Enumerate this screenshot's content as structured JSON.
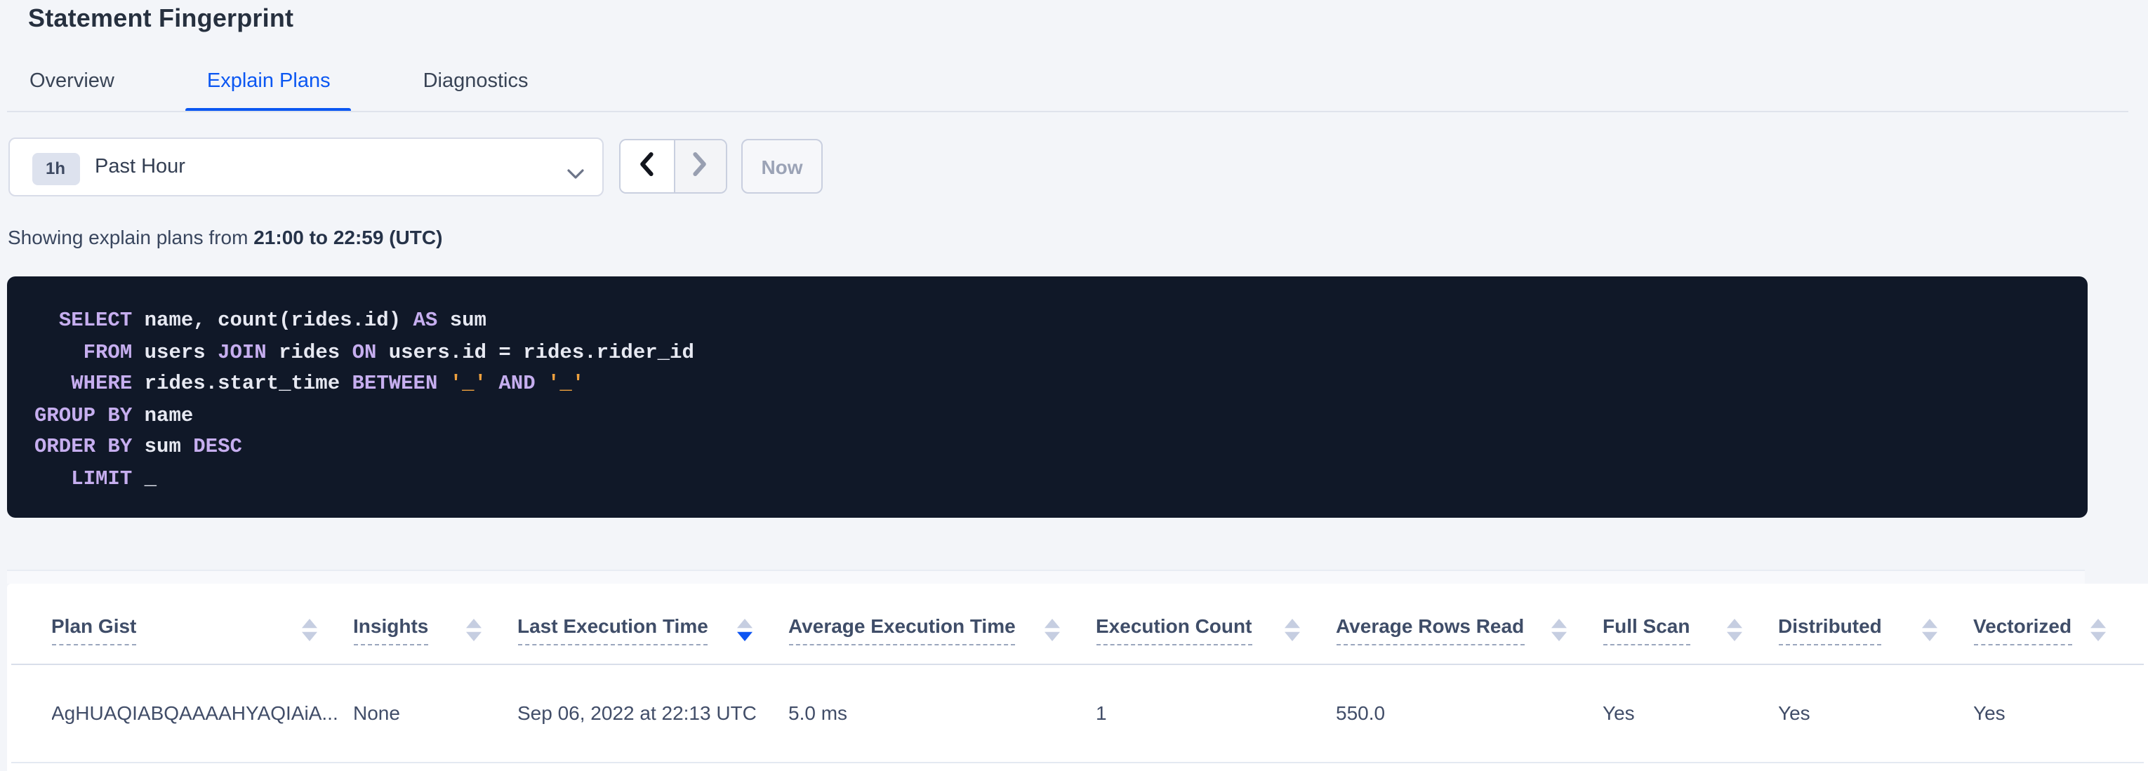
{
  "page": {
    "title": "Statement Fingerprint"
  },
  "tabs": [
    {
      "label": "Overview",
      "active": false
    },
    {
      "label": "Explain Plans",
      "active": true
    },
    {
      "label": "Diagnostics",
      "active": false
    }
  ],
  "time_picker": {
    "range_badge": "1h",
    "range_label": "Past Hour",
    "now_label": "Now",
    "prev_enabled": true,
    "next_enabled": false,
    "now_enabled": false,
    "icons": {
      "select_caret": "chevron-down",
      "prev": "chevron-left",
      "next": "chevron-right"
    }
  },
  "status_line": {
    "prefix": "Showing explain plans from ",
    "range_bold": "21:00 to 22:59 (UTC)"
  },
  "sql": {
    "lines": [
      [
        [
          "sp",
          "  "
        ],
        [
          "kw",
          "SELECT"
        ],
        [
          "id",
          " name, count(rides.id) "
        ],
        [
          "kw",
          "AS"
        ],
        [
          "id",
          " sum"
        ]
      ],
      [
        [
          "sp",
          "    "
        ],
        [
          "kw",
          "FROM"
        ],
        [
          "id",
          " users "
        ],
        [
          "kw",
          "JOIN"
        ],
        [
          "id",
          " rides "
        ],
        [
          "kw",
          "ON"
        ],
        [
          "id",
          " users.id = rides.rider_id"
        ]
      ],
      [
        [
          "sp",
          "   "
        ],
        [
          "kw",
          "WHERE"
        ],
        [
          "id",
          " rides.start_time "
        ],
        [
          "kw",
          "BETWEEN"
        ],
        [
          "id",
          " "
        ],
        [
          "lit",
          "'_'"
        ],
        [
          "id",
          " "
        ],
        [
          "kw",
          "AND"
        ],
        [
          "id",
          " "
        ],
        [
          "lit",
          "'_'"
        ]
      ],
      [
        [
          "kw",
          "GROUP BY"
        ],
        [
          "id",
          " name"
        ]
      ],
      [
        [
          "kw",
          "ORDER BY"
        ],
        [
          "id",
          " sum "
        ],
        [
          "kw",
          "DESC"
        ]
      ],
      [
        [
          "sp",
          "   "
        ],
        [
          "kw",
          "LIMIT"
        ],
        [
          "id",
          " _"
        ]
      ]
    ]
  },
  "table": {
    "columns": [
      {
        "label": "Plan Gist",
        "sort": "none"
      },
      {
        "label": "Insights",
        "sort": "none"
      },
      {
        "label": "Last Execution Time",
        "sort": "desc"
      },
      {
        "label": "Average Execution Time",
        "sort": "none"
      },
      {
        "label": "Execution Count",
        "sort": "none"
      },
      {
        "label": "Average Rows Read",
        "sort": "none"
      },
      {
        "label": "Full Scan",
        "sort": "none"
      },
      {
        "label": "Distributed",
        "sort": "none"
      },
      {
        "label": "Vectorized",
        "sort": "none"
      }
    ],
    "rows": [
      {
        "cells": [
          "AgHUAQIABQAAAAHYAQIAiA...",
          "None",
          "Sep 06, 2022 at 22:13 UTC",
          "5.0 ms",
          "1",
          "550.0",
          "Yes",
          "Yes",
          "Yes"
        ]
      }
    ]
  },
  "colors": {
    "accent_blue": "#0b57f2",
    "sort_active_blue": "#0e55f2",
    "code_background": "#101828",
    "code_keyword": "#c6aeef",
    "code_identifier": "#e7e9f2",
    "code_literal": "#efa13e"
  }
}
